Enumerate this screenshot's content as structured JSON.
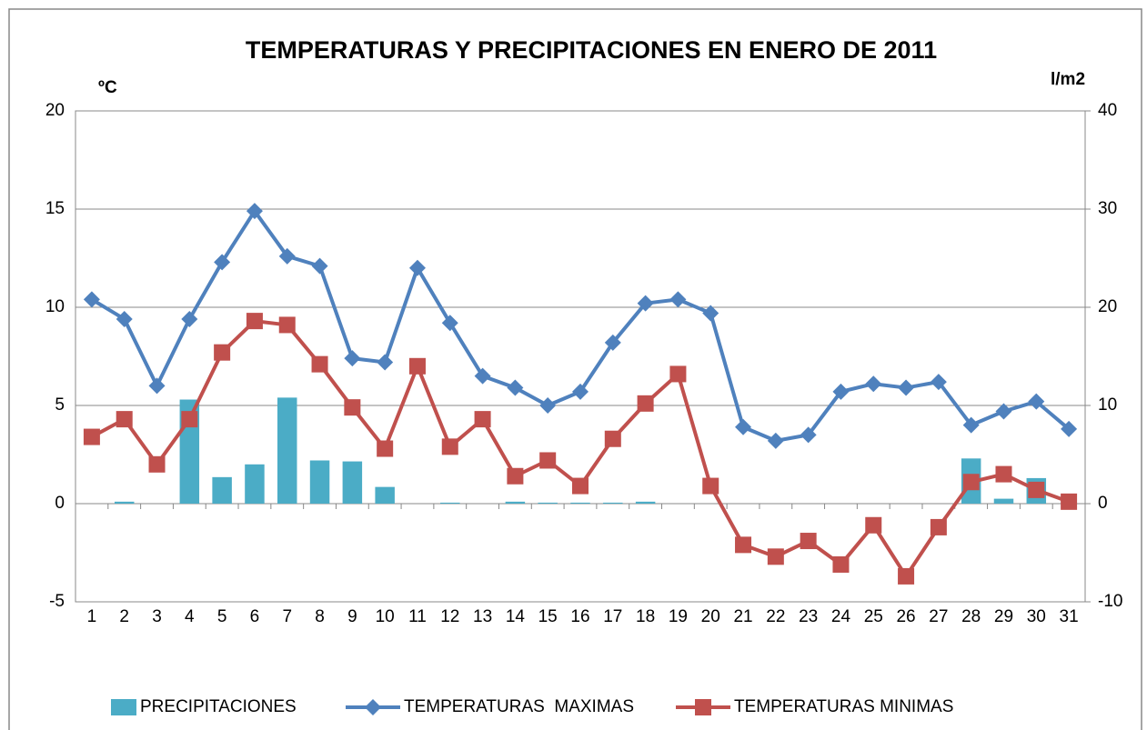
{
  "chart_data": {
    "type": "combo",
    "title": "TEMPERATURAS Y PRECIPITACIONES EN ENERO DE 2011",
    "y_label": "ºC",
    "y2_label": "l/m2",
    "categories": [
      "1",
      "2",
      "3",
      "4",
      "5",
      "6",
      "7",
      "8",
      "9",
      "10",
      "11",
      "12",
      "13",
      "14",
      "15",
      "16",
      "17",
      "18",
      "19",
      "20",
      "21",
      "22",
      "23",
      "24",
      "25",
      "26",
      "27",
      "28",
      "29",
      "30",
      "31"
    ],
    "ylim": [
      -5,
      20
    ],
    "yticks": [
      -5,
      0,
      5,
      10,
      15,
      20
    ],
    "y2lim": [
      -10,
      40
    ],
    "y2ticks": [
      -10,
      0,
      10,
      20,
      30,
      40
    ],
    "grid": true,
    "legend": "bottom",
    "series": [
      {
        "name": "PRECIPITACIONES",
        "type": "bar",
        "axis": "y2",
        "color": "#4bacc6",
        "values": [
          0,
          0.2,
          0,
          10.6,
          2.7,
          4.0,
          10.8,
          4.4,
          4.3,
          1.7,
          0,
          0.1,
          0,
          0.2,
          0.1,
          0.1,
          0.1,
          0.2,
          0,
          0,
          0,
          0,
          0,
          0,
          0,
          0,
          0,
          4.6,
          0.5,
          2.6,
          0
        ]
      },
      {
        "name": "TEMPERATURAS  MAXIMAS",
        "type": "line",
        "marker": "diamond",
        "color": "#4f81bd",
        "values": [
          10.4,
          9.4,
          6.0,
          9.4,
          12.3,
          14.9,
          12.6,
          12.1,
          7.4,
          7.2,
          12.0,
          9.2,
          6.5,
          5.9,
          5.0,
          5.7,
          8.2,
          10.2,
          10.4,
          9.7,
          3.9,
          3.2,
          3.5,
          5.7,
          6.1,
          5.9,
          6.2,
          4.0,
          4.7,
          5.2,
          3.8
        ]
      },
      {
        "name": "TEMPERATURAS MINIMAS",
        "type": "line",
        "marker": "square",
        "color": "#c0504d",
        "values": [
          3.4,
          4.3,
          2.0,
          4.3,
          7.7,
          9.3,
          9.1,
          7.1,
          4.9,
          2.8,
          7.0,
          2.9,
          4.3,
          1.4,
          2.2,
          0.9,
          3.3,
          5.1,
          6.6,
          0.9,
          -2.1,
          -2.7,
          -1.9,
          -3.1,
          -1.1,
          -3.7,
          -1.2,
          1.1,
          1.5,
          0.7,
          0.1
        ]
      }
    ]
  }
}
